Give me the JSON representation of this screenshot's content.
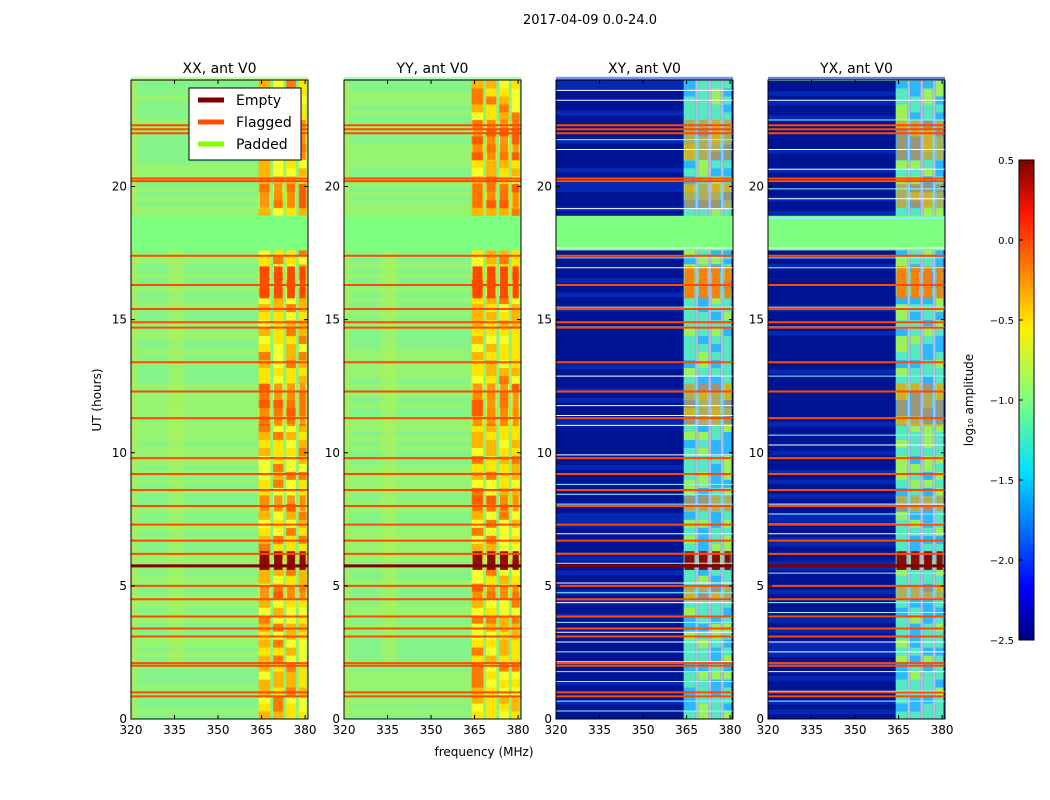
{
  "figure_title": "2017-04-09 0.0-24.0",
  "xlabel": "frequency (MHz)",
  "ylabel": "UT (hours)",
  "chart_data": {
    "type": "heatmap",
    "x_range": [
      320,
      381
    ],
    "x_ticks": [
      320,
      335,
      350,
      365,
      380
    ],
    "y_range": [
      0,
      24
    ],
    "y_ticks": [
      0,
      5,
      10,
      15,
      20
    ],
    "panels": [
      {
        "title": "XX, ant V0",
        "mode": "copol"
      },
      {
        "title": "YY, ant V0",
        "mode": "copol"
      },
      {
        "title": "XY, ant V0",
        "mode": "cross"
      },
      {
        "title": "YX, ant V0",
        "mode": "cross"
      }
    ],
    "flagged_hours": [
      0.85,
      1.0,
      2.0,
      2.1,
      3.1,
      3.4,
      3.85,
      4.5,
      5.0,
      6.2,
      6.7,
      7.3,
      8.0,
      8.6,
      9.2,
      9.8,
      11.3,
      12.3,
      13.4,
      14.7,
      14.9,
      15.4,
      16.3,
      17.4,
      20.2,
      20.3,
      22.0,
      22.15,
      22.3
    ],
    "empty_hours": [
      5.75
    ],
    "padded_hour_ranges": [
      [
        17.6,
        18.9
      ]
    ],
    "legend": [
      {
        "label": "Empty",
        "color": "#800000"
      },
      {
        "label": "Flagged",
        "color": "#ff4a00"
      },
      {
        "label": "Padded",
        "color": "#7fff00"
      }
    ],
    "colorbar": {
      "label": "log₁₀ amplitude",
      "range": [
        -2.5,
        0.5
      ],
      "ticks": [
        "0.5",
        "0.0",
        "−0.5",
        "−1.0",
        "−1.5",
        "−2.0",
        "−2.5"
      ]
    }
  }
}
